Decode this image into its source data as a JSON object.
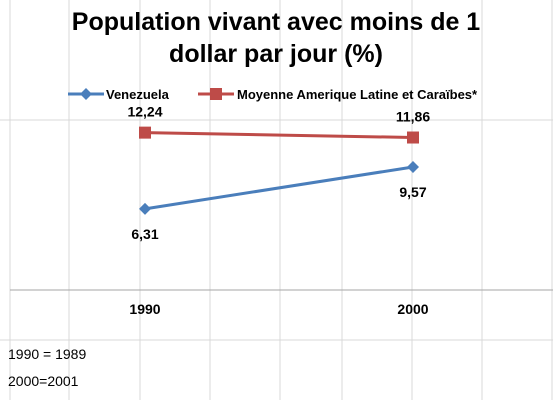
{
  "chart_data": {
    "type": "line",
    "title_lines": [
      "Population vivant avec moins de 1",
      "dollar par jour (%)"
    ],
    "categories": [
      "1990",
      "2000"
    ],
    "series": [
      {
        "name": "Venezuela",
        "values": [
          6.31,
          9.57
        ],
        "labels": [
          "6,31",
          "9,57"
        ],
        "color": "#4a7ebb",
        "marker": "diamond"
      },
      {
        "name": "Moyenne Amerique Latine et Caraïbes*",
        "values": [
          12.24,
          11.86
        ],
        "labels": [
          "12,24",
          "11,86"
        ],
        "color": "#be4b48",
        "marker": "square"
      }
    ],
    "ylim": [
      0,
      14
    ],
    "legend_position": "top",
    "gridlines": "vertical-cells"
  },
  "notes": [
    "1990 = 1989",
    "2000=2001"
  ]
}
